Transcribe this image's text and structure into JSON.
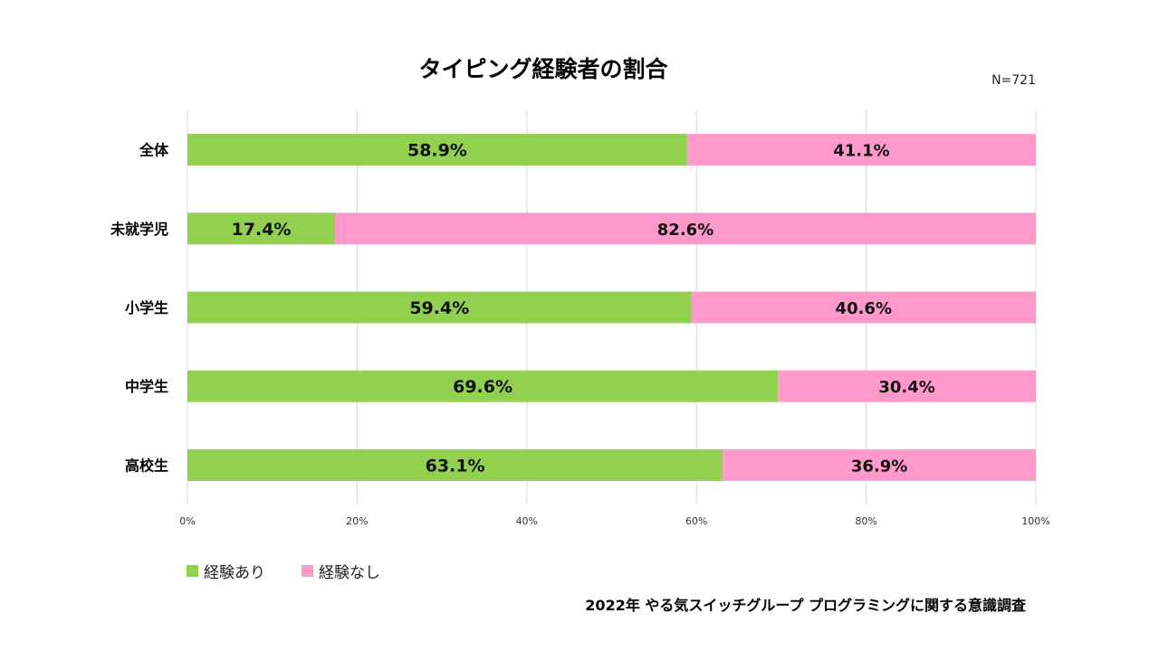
{
  "chart_data": {
    "type": "bar",
    "orientation": "horizontal",
    "stacked": true,
    "title": "タイピング経験者の割合",
    "sample_size": "N=721",
    "categories": [
      "全体",
      "未就学児",
      "小学生",
      "中学生",
      "高校生"
    ],
    "series": [
      {
        "name": "経験あり",
        "color": "#92d050",
        "values": [
          58.9,
          17.4,
          59.4,
          69.6,
          63.1
        ]
      },
      {
        "name": "経験なし",
        "color": "#ff99cc",
        "values": [
          41.1,
          82.6,
          40.6,
          30.4,
          36.9
        ]
      }
    ],
    "value_labels": [
      [
        "58.9%",
        "17.4%",
        "59.4%",
        "69.6%",
        "63.1%"
      ],
      [
        "41.1%",
        "82.6%",
        "40.6%",
        "30.4%",
        "36.9%"
      ]
    ],
    "x_ticks": [
      "0%",
      "20%",
      "40%",
      "60%",
      "80%",
      "100%"
    ],
    "x_range": [
      0,
      100
    ],
    "grid": true,
    "legend_position": "bottom-left",
    "source": "2022年 やる気スイッチグループ プログラミングに関する意識調査"
  }
}
